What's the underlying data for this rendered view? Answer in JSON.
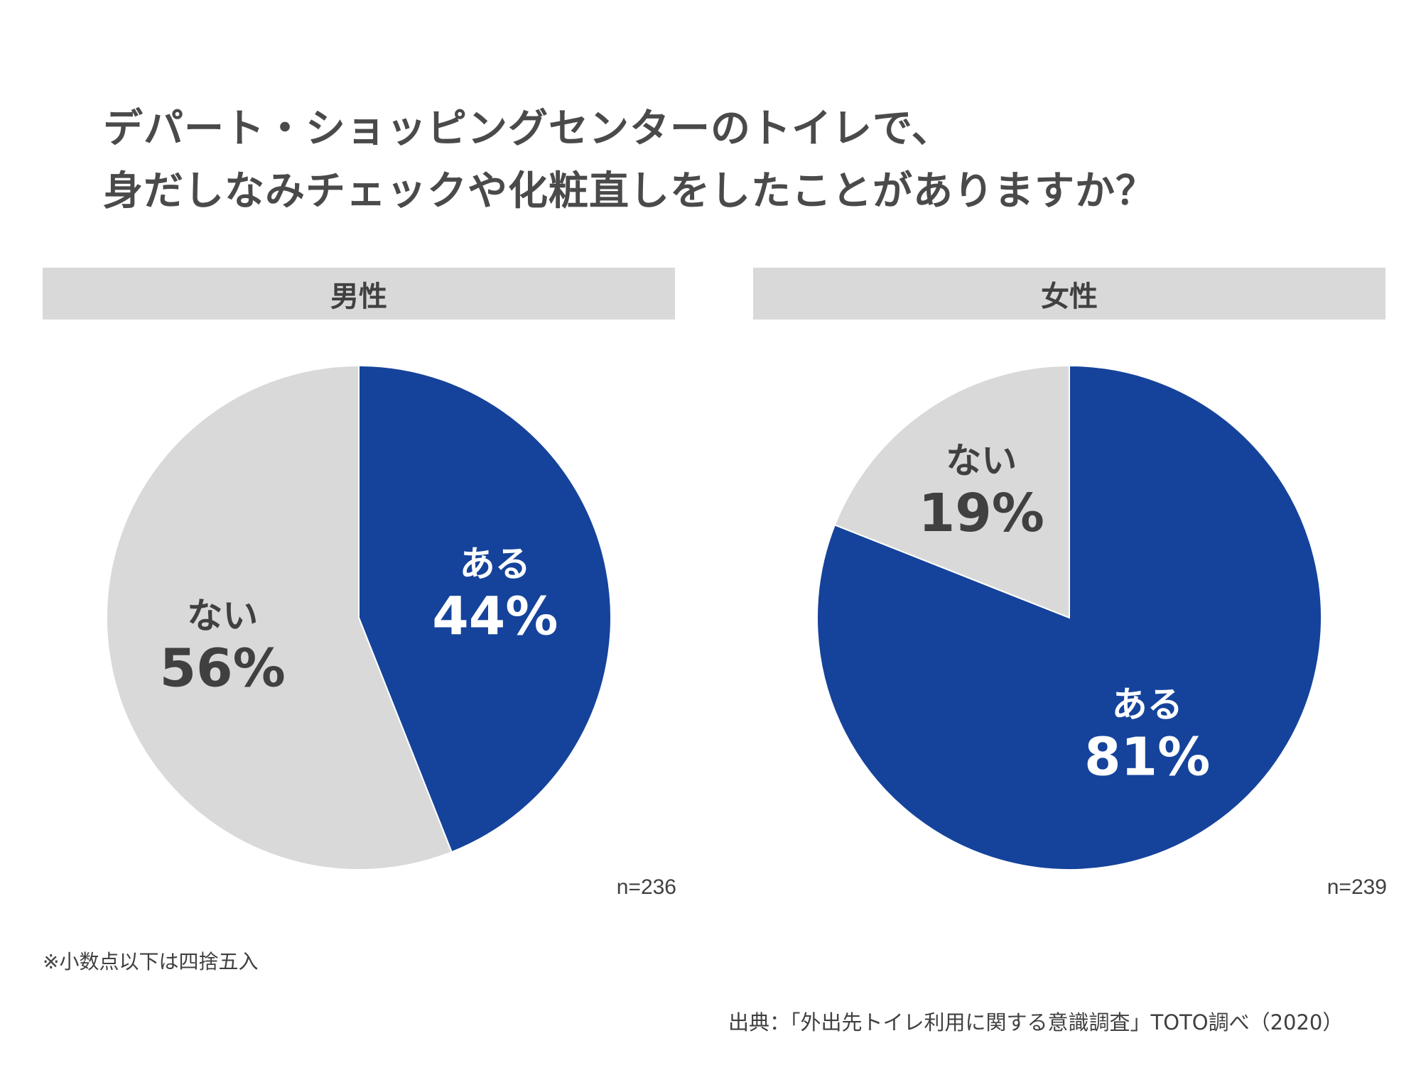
{
  "title": {
    "line1": "デパート・ショッピングセンターのトイレで、",
    "line2": "身だしなみチェックや化粧直しをしたことがありますか？"
  },
  "colors": {
    "yes": "#15439b",
    "no": "#d9d9d9",
    "label_on_yes": "#ffffff",
    "label_on_no": "#404040",
    "header_bg": "#d9d9d9"
  },
  "chart_data": [
    {
      "type": "pie",
      "title": "男性",
      "n_label": "n=236",
      "slices": [
        {
          "label": "ある",
          "value": 44,
          "text": "44%"
        },
        {
          "label": "ない",
          "value": 56,
          "text": "56%"
        }
      ]
    },
    {
      "type": "pie",
      "title": "女性",
      "n_label": "n=239",
      "slices": [
        {
          "label": "ある",
          "value": 81,
          "text": "81%"
        },
        {
          "label": "ない",
          "value": 19,
          "text": "19%"
        }
      ]
    }
  ],
  "note": "※小数点以下は四捨五入",
  "source": "出典：「外出先トイレ利用に関する意識調査」TOTO調べ（2020）"
}
